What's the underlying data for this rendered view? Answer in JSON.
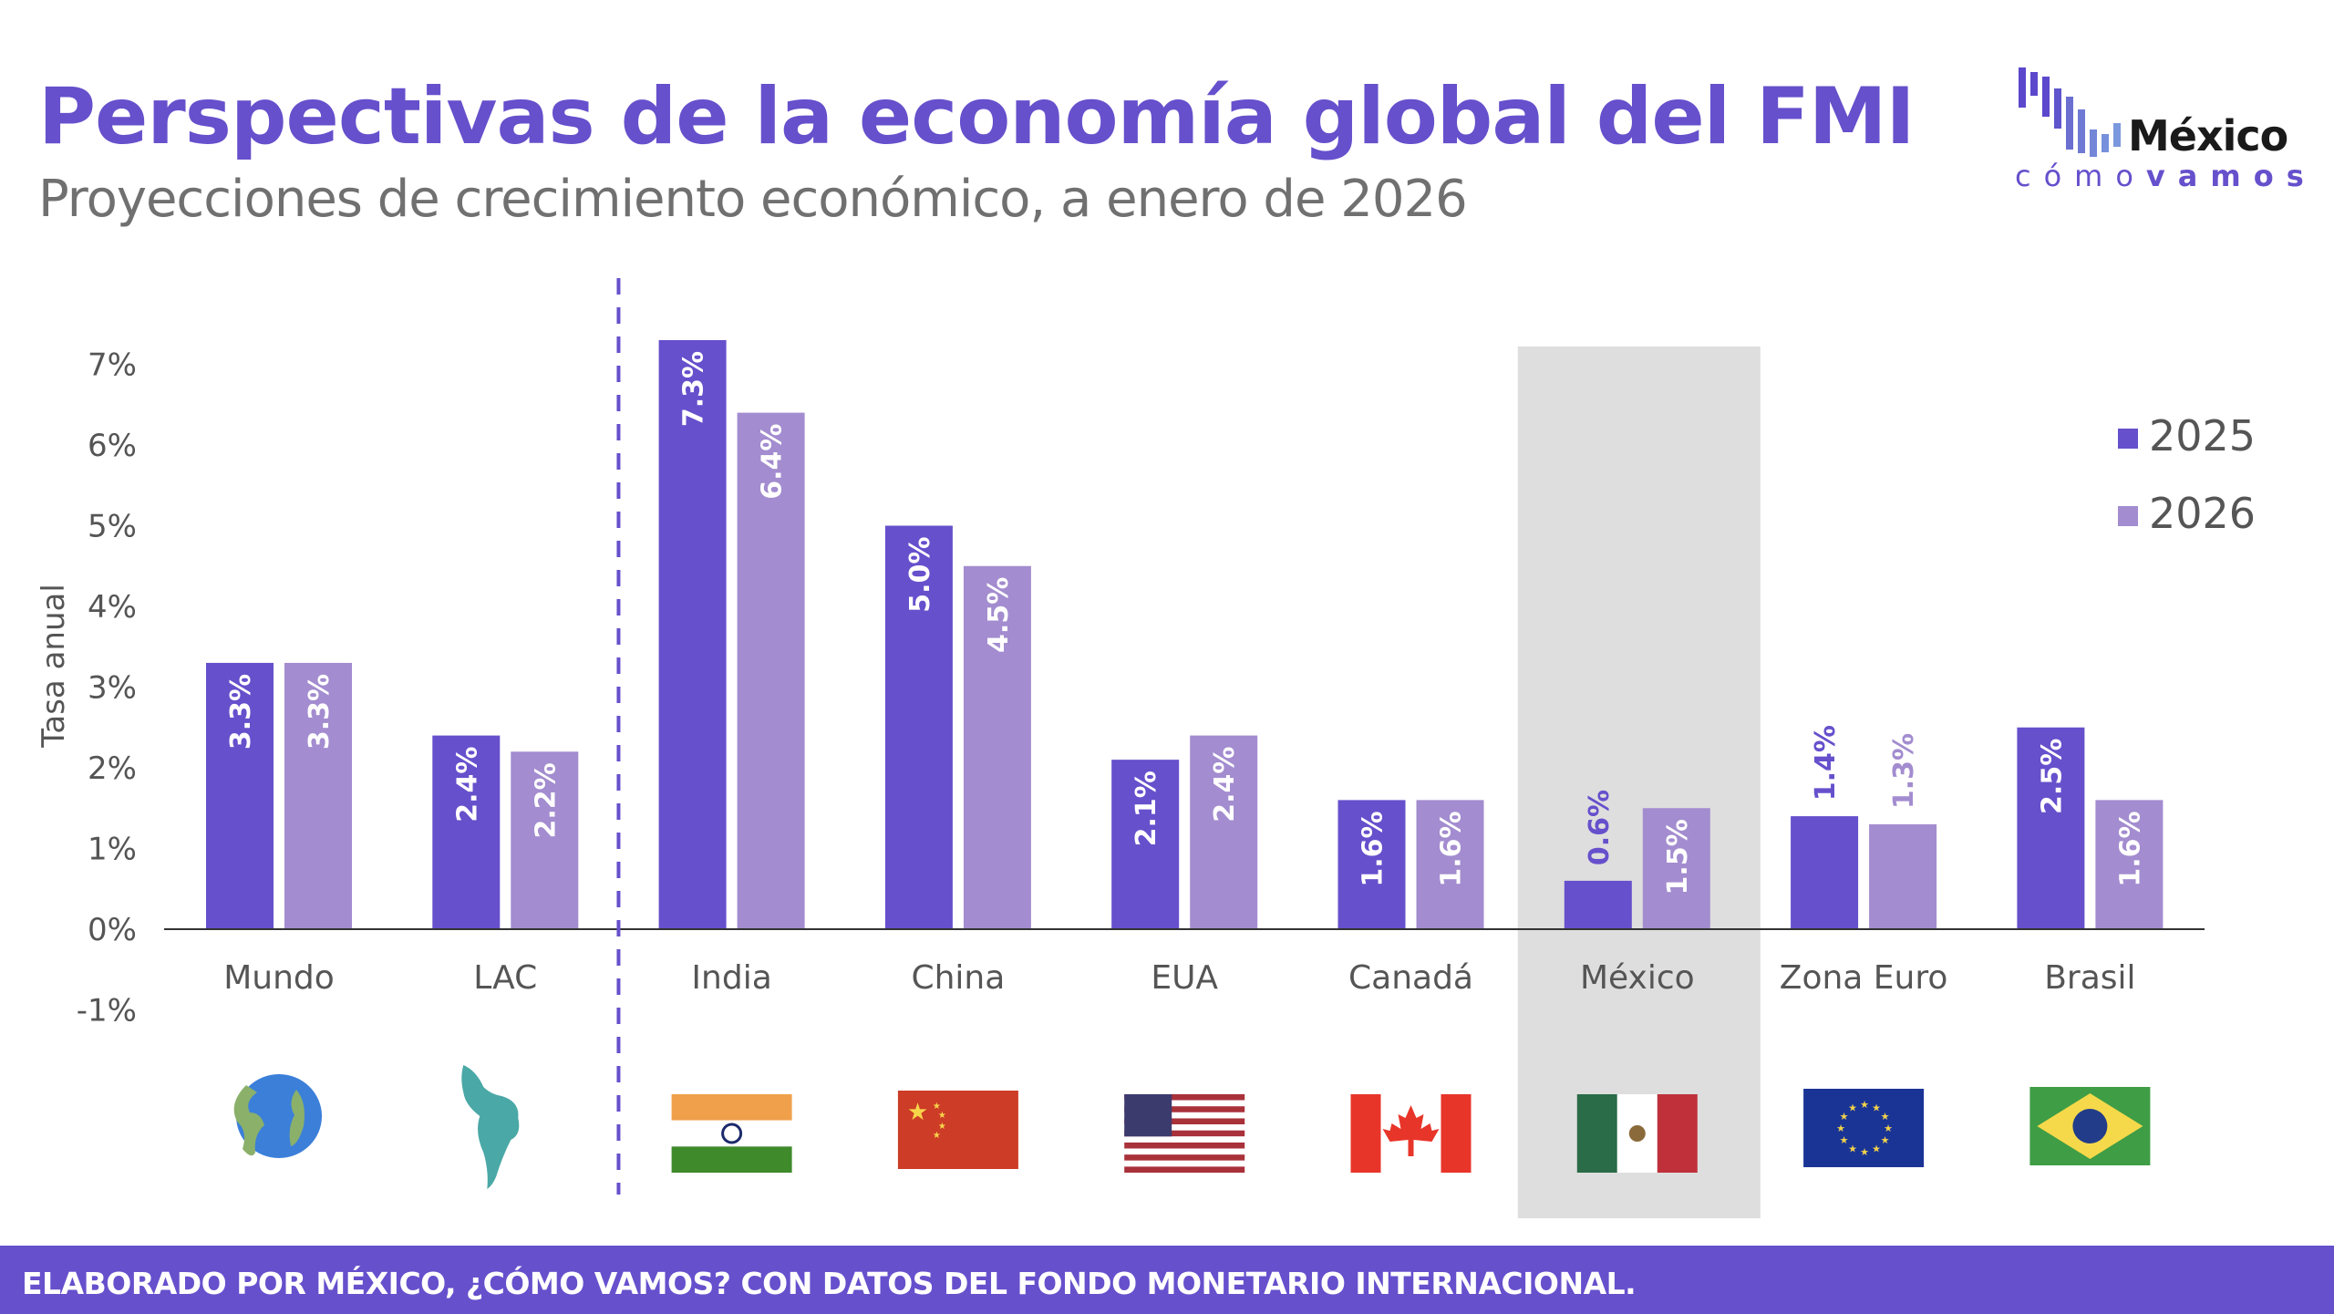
{
  "header": {
    "title": "Perspectivas de la economía global del FMI",
    "subtitle": "Proyecciones de crecimiento económico, a enero de 2026"
  },
  "logo": {
    "word_top": "México",
    "word_bottom_light": "cómo",
    "word_bottom_bold": "vamos"
  },
  "footer": {
    "text": "ELABORADO POR MÉXICO, ¿CÓMO VAMOS? CON DATOS DEL FONDO MONETARIO INTERNACIONAL."
  },
  "colors": {
    "brand": "#6650cc",
    "series_2025": "#6650cc",
    "series_2026": "#a38ccf",
    "highlight_bg": "#dedede",
    "axis_text": "#555555"
  },
  "chart_data": {
    "type": "bar",
    "title": "Perspectivas de la economía global del FMI",
    "subtitle": "Proyecciones de crecimiento económico, a enero de 2026",
    "xlabel": "",
    "ylabel": "Tasa anual",
    "ylim": [
      -1,
      7
    ],
    "yticks": [
      -1,
      0,
      1,
      2,
      3,
      4,
      5,
      6,
      7
    ],
    "ytick_labels": [
      "-1%",
      "0%",
      "1%",
      "2%",
      "3%",
      "4%",
      "5%",
      "6%",
      "7%"
    ],
    "grid": false,
    "legend_position": "top-right",
    "categories": [
      "Mundo",
      "LAC",
      "India",
      "China",
      "EUA",
      "Canadá",
      "México",
      "Zona Euro",
      "Brasil"
    ],
    "category_icons": [
      "globe-icon",
      "latin-america-map-icon",
      "india-flag-icon",
      "china-flag-icon",
      "usa-flag-icon",
      "canada-flag-icon",
      "mexico-flag-icon",
      "eu-flag-icon",
      "brazil-flag-icon"
    ],
    "series": [
      {
        "name": "2025",
        "values": [
          3.3,
          2.4,
          7.3,
          5.0,
          2.1,
          1.6,
          0.6,
          1.4,
          2.5
        ],
        "labels": [
          "3.3%",
          "2.4%",
          "7.3%",
          "5.0%",
          "2.1%",
          "1.6%",
          "0.6%",
          "1.4%",
          "2.5%"
        ]
      },
      {
        "name": "2026",
        "values": [
          3.3,
          2.2,
          6.4,
          4.5,
          2.4,
          1.6,
          1.5,
          1.3,
          1.6
        ],
        "labels": [
          "3.3%",
          "2.2%",
          "6.4%",
          "4.5%",
          "2.4%",
          "1.6%",
          "1.5%",
          "1.3%",
          "1.6%"
        ]
      }
    ],
    "highlighted_category": "México",
    "separator_after_category": "LAC"
  }
}
